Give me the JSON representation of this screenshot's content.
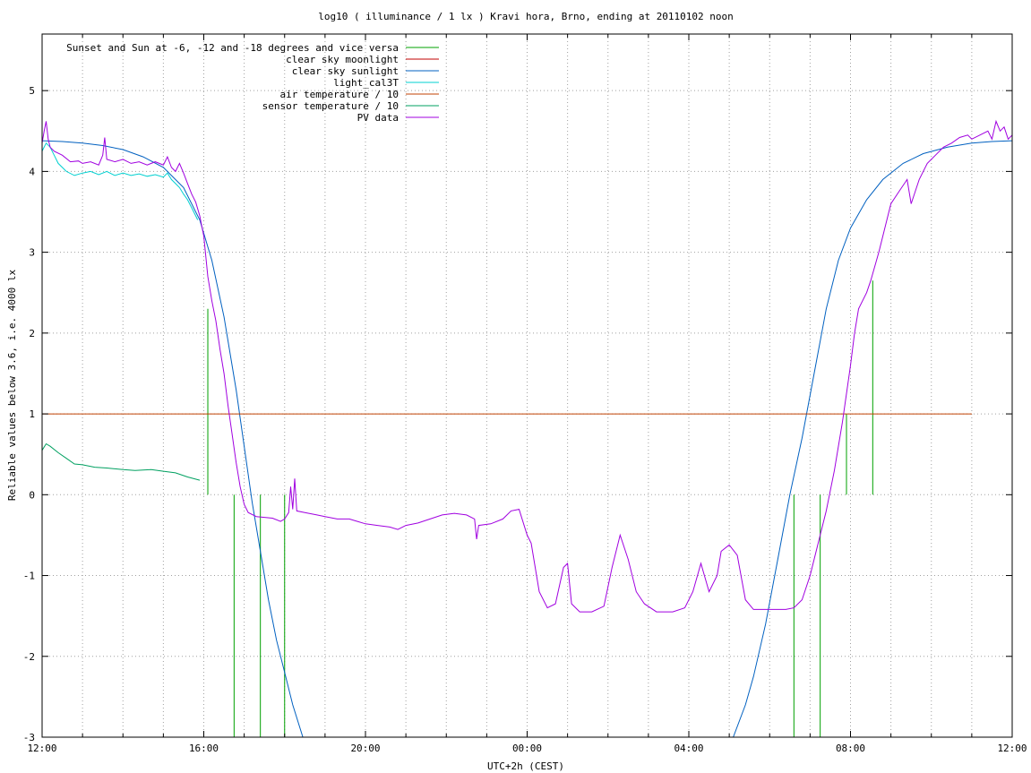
{
  "chart_data": {
    "type": "line",
    "title": "log10 ( illuminance / 1 lx ) Kravi hora, Brno, ending at 20110102 noon",
    "xlabel": "UTC+2h (CEST)",
    "ylabel": "Reliable values below 3.6, i.e. 4000 lx",
    "xlim": [
      0,
      24
    ],
    "ylim": [
      -3,
      5.7
    ],
    "x_ticks": [
      {
        "value": 0,
        "label": "12:00"
      },
      {
        "value": 4,
        "label": "16:00"
      },
      {
        "value": 8,
        "label": "20:00"
      },
      {
        "value": 12,
        "label": "00:00"
      },
      {
        "value": 16,
        "label": "04:00"
      },
      {
        "value": 20,
        "label": "08:00"
      },
      {
        "value": 24,
        "label": "12:00"
      }
    ],
    "x_minor_step": 1,
    "y_ticks": [
      -3,
      -2,
      -1,
      0,
      1,
      2,
      3,
      4,
      5
    ],
    "grid": true,
    "legend_position": "top-left",
    "series": [
      {
        "name": "Sunset and Sun at -6, -12 and -18 degrees and vice versa",
        "color": "#00a000",
        "style": "impulses",
        "points": [
          [
            4.1,
            2.3
          ],
          [
            4.75,
            0.0
          ],
          [
            5.4,
            0.0
          ],
          [
            6.0,
            0.0
          ],
          [
            18.6,
            0.0
          ],
          [
            19.25,
            0.0
          ],
          [
            19.9,
            1.0
          ],
          [
            20.55,
            2.65
          ]
        ]
      },
      {
        "name": "clear sky moonlight",
        "color": "#c00000",
        "points": []
      },
      {
        "name": "clear sky sunlight",
        "color": "#0060c0",
        "points": [
          [
            0.0,
            4.38
          ],
          [
            0.5,
            4.37
          ],
          [
            1.0,
            4.35
          ],
          [
            1.5,
            4.32
          ],
          [
            2.0,
            4.27
          ],
          [
            2.5,
            4.18
          ],
          [
            3.0,
            4.05
          ],
          [
            3.5,
            3.8
          ],
          [
            3.9,
            3.4
          ],
          [
            4.2,
            2.9
          ],
          [
            4.5,
            2.2
          ],
          [
            4.8,
            1.3
          ],
          [
            5.0,
            0.6
          ],
          [
            5.2,
            -0.1
          ],
          [
            5.4,
            -0.7
          ],
          [
            5.6,
            -1.3
          ],
          [
            5.8,
            -1.8
          ],
          [
            6.0,
            -2.2
          ],
          [
            6.2,
            -2.6
          ],
          [
            6.45,
            -3.0
          ],
          [
            17.1,
            -3.0
          ],
          [
            17.4,
            -2.6
          ],
          [
            17.6,
            -2.25
          ],
          [
            17.9,
            -1.6
          ],
          [
            18.2,
            -0.8
          ],
          [
            18.5,
            0.0
          ],
          [
            18.8,
            0.7
          ],
          [
            19.1,
            1.5
          ],
          [
            19.4,
            2.3
          ],
          [
            19.7,
            2.9
          ],
          [
            20.0,
            3.3
          ],
          [
            20.4,
            3.65
          ],
          [
            20.8,
            3.9
          ],
          [
            21.3,
            4.1
          ],
          [
            21.8,
            4.22
          ],
          [
            22.4,
            4.3
          ],
          [
            23.0,
            4.35
          ],
          [
            23.5,
            4.37
          ],
          [
            24.0,
            4.38
          ]
        ]
      },
      {
        "name": "light_cal3T",
        "color": "#00d0d0",
        "points": [
          [
            0.0,
            4.25
          ],
          [
            0.1,
            4.35
          ],
          [
            0.2,
            4.3
          ],
          [
            0.3,
            4.2
          ],
          [
            0.4,
            4.1
          ],
          [
            0.6,
            4.0
          ],
          [
            0.8,
            3.95
          ],
          [
            1.0,
            3.98
          ],
          [
            1.2,
            4.0
          ],
          [
            1.4,
            3.96
          ],
          [
            1.6,
            4.0
          ],
          [
            1.8,
            3.95
          ],
          [
            2.0,
            3.98
          ],
          [
            2.2,
            3.95
          ],
          [
            2.4,
            3.97
          ],
          [
            2.6,
            3.94
          ],
          [
            2.8,
            3.96
          ],
          [
            3.0,
            3.93
          ],
          [
            3.1,
            3.98
          ],
          [
            3.2,
            3.9
          ],
          [
            3.3,
            3.85
          ],
          [
            3.4,
            3.8
          ],
          [
            3.5,
            3.72
          ],
          [
            3.6,
            3.65
          ],
          [
            3.7,
            3.55
          ],
          [
            3.8,
            3.45
          ],
          [
            3.85,
            3.4
          ]
        ]
      },
      {
        "name": "air temperature / 10",
        "color": "#c04000",
        "points": [
          [
            0.0,
            1.0
          ],
          [
            23.0,
            1.0
          ]
        ]
      },
      {
        "name": "sensor temperature / 10",
        "color": "#00a060",
        "points": [
          [
            0.0,
            0.55
          ],
          [
            0.1,
            0.63
          ],
          [
            0.2,
            0.6
          ],
          [
            0.4,
            0.52
          ],
          [
            0.6,
            0.45
          ],
          [
            0.8,
            0.38
          ],
          [
            1.0,
            0.37
          ],
          [
            1.3,
            0.34
          ],
          [
            1.6,
            0.33
          ],
          [
            2.0,
            0.31
          ],
          [
            2.3,
            0.3
          ],
          [
            2.7,
            0.31
          ],
          [
            3.0,
            0.29
          ],
          [
            3.3,
            0.27
          ],
          [
            3.6,
            0.22
          ],
          [
            3.9,
            0.18
          ]
        ]
      },
      {
        "name": "PV data",
        "color": "#a000e0",
        "points": [
          [
            0.0,
            4.35
          ],
          [
            0.05,
            4.5
          ],
          [
            0.1,
            4.62
          ],
          [
            0.15,
            4.4
          ],
          [
            0.2,
            4.3
          ],
          [
            0.3,
            4.25
          ],
          [
            0.5,
            4.2
          ],
          [
            0.7,
            4.12
          ],
          [
            0.9,
            4.13
          ],
          [
            1.0,
            4.1
          ],
          [
            1.2,
            4.12
          ],
          [
            1.4,
            4.08
          ],
          [
            1.5,
            4.2
          ],
          [
            1.55,
            4.42
          ],
          [
            1.6,
            4.15
          ],
          [
            1.8,
            4.12
          ],
          [
            2.0,
            4.15
          ],
          [
            2.2,
            4.1
          ],
          [
            2.4,
            4.12
          ],
          [
            2.6,
            4.08
          ],
          [
            2.8,
            4.12
          ],
          [
            3.0,
            4.08
          ],
          [
            3.1,
            4.18
          ],
          [
            3.2,
            4.05
          ],
          [
            3.3,
            4.0
          ],
          [
            3.4,
            4.1
          ],
          [
            3.5,
            3.98
          ],
          [
            3.6,
            3.85
          ],
          [
            3.7,
            3.72
          ],
          [
            3.8,
            3.62
          ],
          [
            3.9,
            3.45
          ],
          [
            4.0,
            3.2
          ],
          [
            4.1,
            2.7
          ],
          [
            4.2,
            2.4
          ],
          [
            4.3,
            2.15
          ],
          [
            4.4,
            1.8
          ],
          [
            4.5,
            1.5
          ],
          [
            4.6,
            1.1
          ],
          [
            4.7,
            0.75
          ],
          [
            4.8,
            0.4
          ],
          [
            4.9,
            0.1
          ],
          [
            5.0,
            -0.12
          ],
          [
            5.1,
            -0.22
          ],
          [
            5.3,
            -0.27
          ],
          [
            5.5,
            -0.28
          ],
          [
            5.7,
            -0.29
          ],
          [
            5.9,
            -0.33
          ],
          [
            6.0,
            -0.3
          ],
          [
            6.1,
            -0.22
          ],
          [
            6.15,
            0.1
          ],
          [
            6.2,
            -0.18
          ],
          [
            6.25,
            0.2
          ],
          [
            6.3,
            -0.2
          ],
          [
            6.5,
            -0.22
          ],
          [
            6.8,
            -0.25
          ],
          [
            7.0,
            -0.27
          ],
          [
            7.3,
            -0.3
          ],
          [
            7.6,
            -0.3
          ],
          [
            7.8,
            -0.33
          ],
          [
            8.0,
            -0.36
          ],
          [
            8.3,
            -0.38
          ],
          [
            8.6,
            -0.4
          ],
          [
            8.8,
            -0.43
          ],
          [
            9.0,
            -0.38
          ],
          [
            9.3,
            -0.35
          ],
          [
            9.6,
            -0.3
          ],
          [
            9.9,
            -0.25
          ],
          [
            10.2,
            -0.23
          ],
          [
            10.5,
            -0.25
          ],
          [
            10.7,
            -0.3
          ],
          [
            10.75,
            -0.55
          ],
          [
            10.8,
            -0.38
          ],
          [
            11.1,
            -0.36
          ],
          [
            11.4,
            -0.3
          ],
          [
            11.6,
            -0.2
          ],
          [
            11.8,
            -0.18
          ],
          [
            12.0,
            -0.5
          ],
          [
            12.1,
            -0.6
          ],
          [
            12.2,
            -0.9
          ],
          [
            12.3,
            -1.2
          ],
          [
            12.5,
            -1.4
          ],
          [
            12.7,
            -1.35
          ],
          [
            12.9,
            -0.9
          ],
          [
            13.0,
            -0.85
          ],
          [
            13.1,
            -1.35
          ],
          [
            13.3,
            -1.45
          ],
          [
            13.6,
            -1.45
          ],
          [
            13.9,
            -1.38
          ],
          [
            14.1,
            -0.9
          ],
          [
            14.3,
            -0.5
          ],
          [
            14.5,
            -0.8
          ],
          [
            14.7,
            -1.2
          ],
          [
            14.9,
            -1.35
          ],
          [
            15.2,
            -1.45
          ],
          [
            15.6,
            -1.45
          ],
          [
            15.9,
            -1.4
          ],
          [
            16.1,
            -1.2
          ],
          [
            16.3,
            -0.85
          ],
          [
            16.5,
            -1.2
          ],
          [
            16.7,
            -1.0
          ],
          [
            16.8,
            -0.7
          ],
          [
            17.0,
            -0.62
          ],
          [
            17.2,
            -0.75
          ],
          [
            17.4,
            -1.3
          ],
          [
            17.6,
            -1.42
          ],
          [
            18.0,
            -1.42
          ],
          [
            18.4,
            -1.42
          ],
          [
            18.6,
            -1.4
          ],
          [
            18.8,
            -1.3
          ],
          [
            19.0,
            -1.0
          ],
          [
            19.2,
            -0.6
          ],
          [
            19.4,
            -0.2
          ],
          [
            19.6,
            0.3
          ],
          [
            19.8,
            0.9
          ],
          [
            20.0,
            1.6
          ],
          [
            20.1,
            2.0
          ],
          [
            20.2,
            2.3
          ],
          [
            20.4,
            2.5
          ],
          [
            20.5,
            2.65
          ],
          [
            20.7,
            3.0
          ],
          [
            20.9,
            3.4
          ],
          [
            21.0,
            3.6
          ],
          [
            21.2,
            3.75
          ],
          [
            21.4,
            3.9
          ],
          [
            21.5,
            3.6
          ],
          [
            21.7,
            3.9
          ],
          [
            21.9,
            4.1
          ],
          [
            22.1,
            4.2
          ],
          [
            22.3,
            4.3
          ],
          [
            22.5,
            4.35
          ],
          [
            22.7,
            4.42
          ],
          [
            22.9,
            4.45
          ],
          [
            23.0,
            4.4
          ],
          [
            23.2,
            4.45
          ],
          [
            23.4,
            4.5
          ],
          [
            23.5,
            4.4
          ],
          [
            23.6,
            4.62
          ],
          [
            23.7,
            4.5
          ],
          [
            23.8,
            4.55
          ],
          [
            23.9,
            4.4
          ],
          [
            24.0,
            4.45
          ]
        ]
      }
    ]
  }
}
